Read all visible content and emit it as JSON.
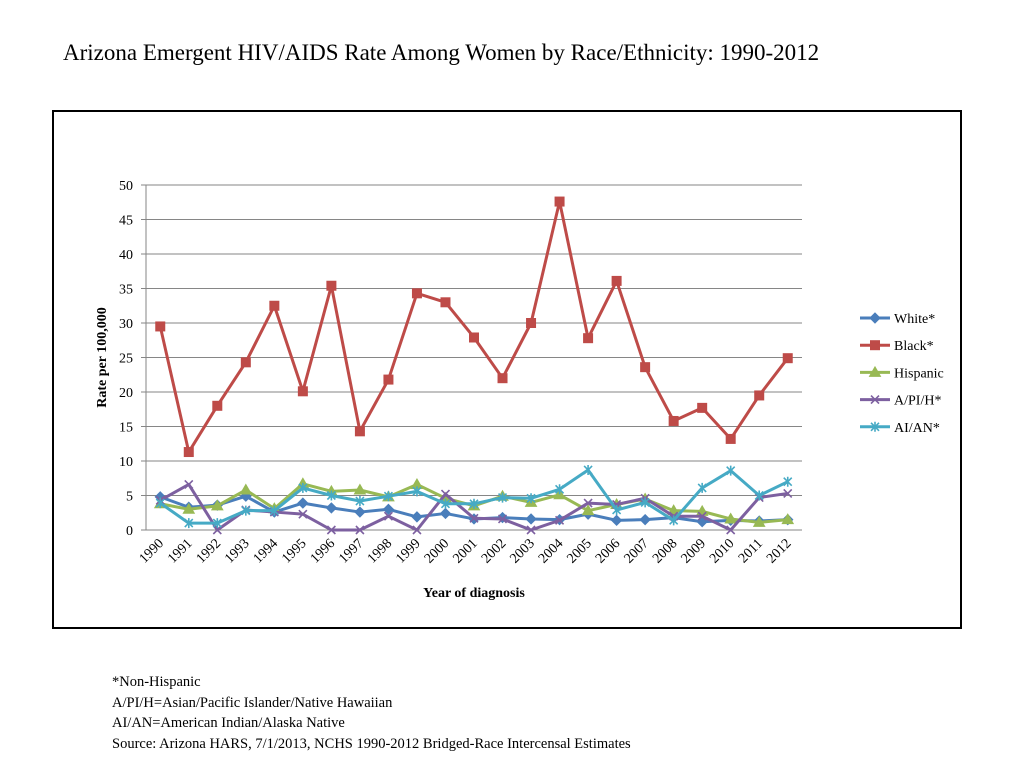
{
  "title": "Arizona Emergent HIV/AIDS Rate Among Women by Race/Ethnicity: 1990-2012",
  "footnotes": [
    "*Non-Hispanic",
    "A/PI/H=Asian/Pacific Islander/Native Hawaiian",
    "AI/AN=American Indian/Alaska Native",
    "Source: Arizona HARS, 7/1/2013, NCHS 1990-2012 Bridged-Race Intercensal Estimates"
  ],
  "chart_data": {
    "type": "line",
    "title": "",
    "xlabel": "Year of diagnosis",
    "ylabel": "Rate per 100,000",
    "ylim": [
      0,
      50
    ],
    "yticks": [
      0,
      5,
      10,
      15,
      20,
      25,
      30,
      35,
      40,
      45,
      50
    ],
    "grid": true,
    "legend_position": "right",
    "categories": [
      "1990",
      "1991",
      "1992",
      "1993",
      "1994",
      "1995",
      "1996",
      "1997",
      "1998",
      "1999",
      "2000",
      "2001",
      "2002",
      "2003",
      "2004",
      "2005",
      "2006",
      "2007",
      "2008",
      "2009",
      "2010",
      "2011",
      "2012"
    ],
    "series": [
      {
        "name": "White*",
        "color": "#4a7ebb",
        "marker": "diamond",
        "values": [
          4.8,
          3.3,
          3.6,
          4.9,
          2.6,
          3.9,
          3.2,
          2.6,
          3.0,
          1.9,
          2.4,
          1.6,
          1.8,
          1.6,
          1.5,
          2.3,
          1.4,
          1.5,
          1.8,
          1.2,
          1.4,
          1.3,
          1.5
        ]
      },
      {
        "name": "Black*",
        "color": "#be4b48",
        "marker": "square",
        "values": [
          29.5,
          11.3,
          18.0,
          24.3,
          32.5,
          20.1,
          35.4,
          14.3,
          21.8,
          34.3,
          33.0,
          27.9,
          22.0,
          30.0,
          47.6,
          27.8,
          36.1,
          23.6,
          15.8,
          17.7,
          13.2,
          19.5,
          24.9
        ]
      },
      {
        "name": "Hispanic",
        "color": "#98b954",
        "marker": "triangle",
        "values": [
          3.8,
          3.0,
          3.5,
          5.8,
          3.1,
          6.7,
          5.6,
          5.8,
          4.8,
          6.6,
          4.6,
          3.5,
          4.9,
          4.0,
          5.1,
          2.8,
          3.7,
          4.5,
          2.8,
          2.7,
          1.6,
          1.1,
          1.5
        ]
      },
      {
        "name": "A/PI/H*",
        "color": "#7d60a0",
        "marker": "x",
        "values": [
          4.3,
          6.6,
          0.0,
          2.9,
          2.6,
          2.3,
          0.0,
          0.0,
          2.0,
          0.0,
          5.2,
          1.7,
          1.6,
          0.0,
          1.4,
          3.9,
          3.7,
          4.6,
          2.0,
          2.0,
          0.0,
          4.7,
          5.3
        ]
      },
      {
        "name": "AI/AN*",
        "color": "#46aac5",
        "marker": "star",
        "values": [
          3.9,
          1.0,
          1.0,
          2.8,
          2.8,
          6.1,
          5.0,
          4.2,
          4.9,
          5.6,
          3.8,
          3.8,
          4.7,
          4.6,
          5.9,
          8.7,
          2.9,
          4.0,
          1.4,
          6.1,
          8.6,
          5.0,
          7.0
        ]
      }
    ]
  }
}
